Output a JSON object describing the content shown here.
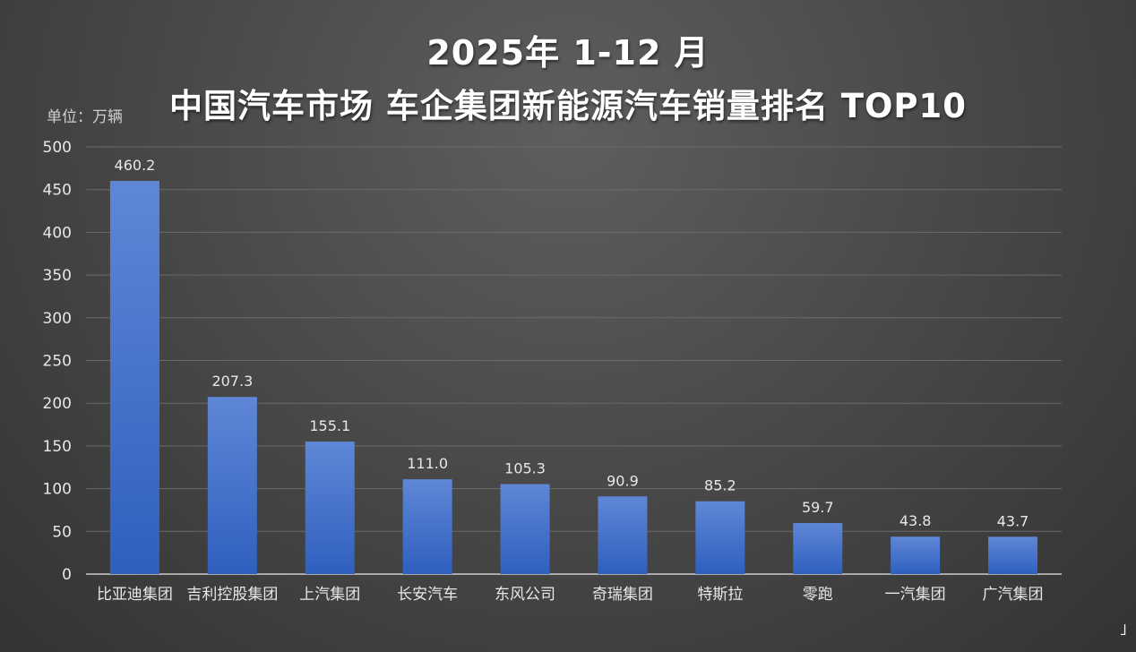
{
  "title_line1": "2025年 1-12 月",
  "title_line2": "中国汽车市场  车企集团新能源汽车销量排名     TOP10",
  "unit": "单位：万辆",
  "colors": {
    "bar_top": "#5f87d6",
    "bar_bottom": "#2f5fbf",
    "grid": "#6a6a6a",
    "axis": "#cccccc",
    "text": "#e8e8e8"
  },
  "chart_data": {
    "type": "bar",
    "title": "2025年 1-12 月 中国汽车市场  车企集团新能源汽车销量排名     TOP10",
    "xlabel": "",
    "ylabel": "单位：万辆",
    "ylim": [
      0,
      500
    ],
    "yticks": [
      0,
      50,
      100,
      150,
      200,
      250,
      300,
      350,
      400,
      450,
      500
    ],
    "grid": true,
    "categories": [
      "比亚迪集团",
      "吉利控股集团",
      "上汽集团",
      "长安汽车",
      "东风公司",
      "奇瑞集团",
      "特斯拉",
      "零跑",
      "一汽集团",
      "广汽集团"
    ],
    "values": [
      460.2,
      207.3,
      155.1,
      111.0,
      105.3,
      90.9,
      85.2,
      59.7,
      43.8,
      43.7
    ],
    "value_labels": [
      "460.2",
      "207.3",
      "155.1",
      "111.0",
      "105.3",
      "90.9",
      "85.2",
      "59.7",
      "43.8",
      "43.7"
    ]
  },
  "corner_mark": "˩"
}
